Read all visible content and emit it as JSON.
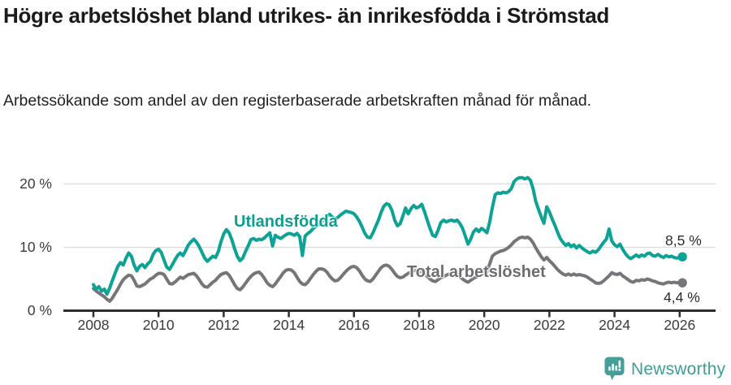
{
  "header": {
    "title": "Högre arbetslöshet bland utrikes- än inrikesfödda i Strömstad",
    "subtitle": "Arbetssökande som andel av den registerbaserade arbetskraften månad för månad."
  },
  "footer": {
    "brand": "Newsworthy",
    "brand_color": "#3f9d96"
  },
  "chart_data": {
    "type": "line",
    "title": "Högre arbetslöshet bland utrikes- än inrikesfödda i Strömstad",
    "subtitle": "Arbetssökande som andel av den registerbaserade arbetskraften månad för månad.",
    "unit": "%",
    "frequency": "monthly",
    "x_start": "2008-01",
    "x_end": "2026-02",
    "ylim": [
      0,
      22
    ],
    "grid": "horizontal",
    "legend_position": "inline-labels",
    "y_ticks": [
      {
        "value": 0,
        "label": "0 %"
      },
      {
        "value": 10,
        "label": "10 %"
      },
      {
        "value": 20,
        "label": "20 %"
      }
    ],
    "x_ticks": [
      {
        "year": 2008,
        "label": "2008"
      },
      {
        "year": 2010,
        "label": "2010"
      },
      {
        "year": 2012,
        "label": "2012"
      },
      {
        "year": 2014,
        "label": "2014"
      },
      {
        "year": 2016,
        "label": "2016"
      },
      {
        "year": 2018,
        "label": "2018"
      },
      {
        "year": 2020,
        "label": "2020"
      },
      {
        "year": 2022,
        "label": "2022"
      },
      {
        "year": 2024,
        "label": "2024"
      },
      {
        "year": 2026,
        "label": "2026"
      }
    ],
    "series": [
      {
        "name": "Total arbetslöshet",
        "color": "#76767a",
        "label_color": "#6d6d71",
        "end_label": "4,4 %",
        "end_value": 4.4,
        "values": [
          3.5,
          3.1,
          2.8,
          2.5,
          2.2,
          1.8,
          1.5,
          2.0,
          2.7,
          3.4,
          4.2,
          4.9,
          5.3,
          5.6,
          5.5,
          4.8,
          3.9,
          3.8,
          4.0,
          4.2,
          4.6,
          5.0,
          5.2,
          5.6,
          5.9,
          5.9,
          5.7,
          5.0,
          4.3,
          4.2,
          4.5,
          4.9,
          5.3,
          5.1,
          5.4,
          5.7,
          5.8,
          5.9,
          5.5,
          4.9,
          4.2,
          3.8,
          3.7,
          4.1,
          4.5,
          4.8,
          5.3,
          5.7,
          5.9,
          6.0,
          5.6,
          4.9,
          4.1,
          3.5,
          3.3,
          3.7,
          4.3,
          4.9,
          5.4,
          5.8,
          6.0,
          6.1,
          5.7,
          5.1,
          4.4,
          4.0,
          3.8,
          4.2,
          4.8,
          5.4,
          6.0,
          6.4,
          6.5,
          6.4,
          6.0,
          5.3,
          4.6,
          4.2,
          4.1,
          4.5,
          5.1,
          5.7,
          6.2,
          6.6,
          6.6,
          6.5,
          6.1,
          5.5,
          5.0,
          4.7,
          4.8,
          5.2,
          5.7,
          6.2,
          6.6,
          6.9,
          7.0,
          6.8,
          6.3,
          5.6,
          5.0,
          4.7,
          4.6,
          5.0,
          5.6,
          6.2,
          6.8,
          7.1,
          7.2,
          7.0,
          6.5,
          5.9,
          5.4,
          5.2,
          5.3,
          5.6,
          5.9,
          6.1,
          6.3,
          6.4,
          6.3,
          6.1,
          5.8,
          5.4,
          5.0,
          4.7,
          4.6,
          4.9,
          5.2,
          5.4,
          5.6,
          5.8,
          6.0,
          6.1,
          5.8,
          5.4,
          5.0,
          4.7,
          4.5,
          4.8,
          5.1,
          5.3,
          5.6,
          5.8,
          6.0,
          6.1,
          7.4,
          8.6,
          9.0,
          9.2,
          9.4,
          9.5,
          9.7,
          10.0,
          10.4,
          10.9,
          11.2,
          11.5,
          11.6,
          11.5,
          11.6,
          11.3,
          10.7,
          9.9,
          9.2,
          8.5,
          8.0,
          8.4,
          7.9,
          7.5,
          7.0,
          6.5,
          6.1,
          5.8,
          5.6,
          5.8,
          5.6,
          5.8,
          5.6,
          5.7,
          5.6,
          5.5,
          5.3,
          5.0,
          4.7,
          4.4,
          4.3,
          4.4,
          4.7,
          5.1,
          5.5,
          6.0,
          5.8,
          5.7,
          5.9,
          5.5,
          5.2,
          4.9,
          4.6,
          4.5,
          4.8,
          4.7,
          4.9,
          4.8,
          5.0,
          4.9,
          4.7,
          4.6,
          4.4,
          4.3,
          4.2,
          4.4,
          4.5,
          4.4,
          4.5,
          4.4,
          4.5,
          4.4
        ]
      },
      {
        "name": "Utlandsfödda",
        "color": "#0ca295",
        "label_color": "#0c9e91",
        "end_label": "8,5 %",
        "end_value": 8.5,
        "values": [
          4.1,
          3.4,
          3.8,
          3.1,
          3.4,
          2.6,
          3.6,
          4.8,
          5.9,
          7.0,
          7.6,
          7.2,
          8.3,
          9.1,
          8.6,
          7.2,
          6.3,
          7.0,
          7.3,
          6.8,
          7.4,
          7.8,
          8.9,
          9.5,
          9.7,
          9.2,
          8.0,
          6.9,
          6.5,
          7.2,
          8.0,
          8.7,
          9.1,
          8.7,
          9.5,
          10.4,
          10.9,
          11.3,
          10.8,
          10.1,
          9.2,
          8.3,
          7.8,
          8.2,
          8.6,
          8.4,
          9.3,
          10.9,
          12.1,
          12.8,
          12.3,
          11.2,
          9.8,
          8.6,
          7.9,
          8.3,
          9.3,
          10.2,
          11.2,
          11.4,
          11.1,
          11.3,
          11.2,
          11.5,
          11.9,
          12.3,
          10.2,
          11.9,
          11.6,
          11.4,
          11.7,
          12.0,
          12.2,
          12.1,
          11.9,
          12.2,
          11.7,
          8.7,
          11.8,
          12.2,
          12.5,
          13.0,
          13.3,
          13.6,
          13.9,
          14.4,
          14.9,
          15.2,
          14.8,
          14.4,
          14.7,
          15.1,
          15.4,
          15.7,
          15.6,
          15.5,
          15.3,
          14.8,
          14.1,
          13.2,
          12.2,
          11.6,
          11.5,
          12.3,
          13.3,
          14.3,
          15.5,
          16.5,
          16.9,
          16.7,
          15.8,
          14.3,
          13.4,
          13.7,
          14.9,
          16.2,
          15.3,
          16.1,
          16.6,
          16.2,
          16.4,
          16.8,
          15.6,
          14.3,
          13.0,
          11.9,
          11.7,
          12.7,
          13.9,
          14.3,
          14.0,
          14.2,
          14.3,
          14.1,
          14.3,
          13.8,
          13.0,
          11.8,
          10.5,
          11.3,
          12.4,
          12.9,
          12.5,
          13.0,
          12.7,
          12.3,
          14.0,
          16.3,
          18.3,
          18.6,
          18.5,
          18.7,
          18.6,
          18.8,
          19.3,
          20.4,
          20.8,
          21.0,
          21.0,
          20.8,
          21.0,
          20.6,
          19.2,
          17.2,
          16.0,
          14.8,
          13.8,
          16.4,
          15.6,
          14.5,
          13.5,
          12.4,
          11.4,
          10.8,
          10.3,
          10.6,
          10.1,
          10.4,
          9.9,
          10.3,
          9.9,
          9.6,
          9.3,
          9.1,
          9.4,
          9.2,
          9.6,
          10.2,
          10.8,
          11.3,
          12.9,
          11.0,
          10.4,
          10.1,
          10.5,
          9.7,
          9.0,
          8.5,
          8.2,
          8.5,
          8.8,
          8.5,
          8.8,
          8.6,
          9.0,
          9.1,
          8.7,
          8.6,
          8.9,
          8.6,
          8.4,
          8.7,
          8.5,
          8.6,
          8.4,
          8.3,
          8.4,
          8.5
        ]
      }
    ]
  }
}
